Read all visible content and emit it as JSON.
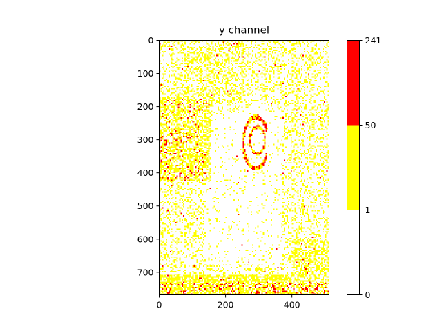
{
  "chart_data": {
    "type": "heatmap",
    "title": "y channel",
    "xlabel": "",
    "ylabel": "",
    "image_width": 512,
    "image_height": 768,
    "xlim": [
      0,
      512
    ],
    "ylim": [
      768,
      0
    ],
    "x_ticks": [
      {
        "value": 0,
        "label": "0"
      },
      {
        "value": 200,
        "label": "200"
      },
      {
        "value": 400,
        "label": "400"
      }
    ],
    "y_ticks": [
      {
        "value": 0,
        "label": "0"
      },
      {
        "value": 100,
        "label": "100"
      },
      {
        "value": 200,
        "label": "200"
      },
      {
        "value": 300,
        "label": "300"
      },
      {
        "value": 400,
        "label": "400"
      },
      {
        "value": 500,
        "label": "500"
      },
      {
        "value": 600,
        "label": "600"
      },
      {
        "value": 700,
        "label": "700"
      }
    ],
    "colorbar": {
      "segments": [
        {
          "from": 0,
          "to": 1,
          "color": "#ffffff"
        },
        {
          "from": 1,
          "to": 50,
          "color": "#ffff00"
        },
        {
          "from": 50,
          "to": 241,
          "color": "#ff0000"
        }
      ],
      "tick_labels": [
        {
          "value": 0,
          "label": "0"
        },
        {
          "value": 1,
          "label": "1"
        },
        {
          "value": 50,
          "label": "50"
        },
        {
          "value": 241,
          "label": "241"
        }
      ]
    },
    "colors": {
      "zero": "#ffffff",
      "low": "#ffff00",
      "high": "#ff0000"
    },
    "grid": false
  }
}
